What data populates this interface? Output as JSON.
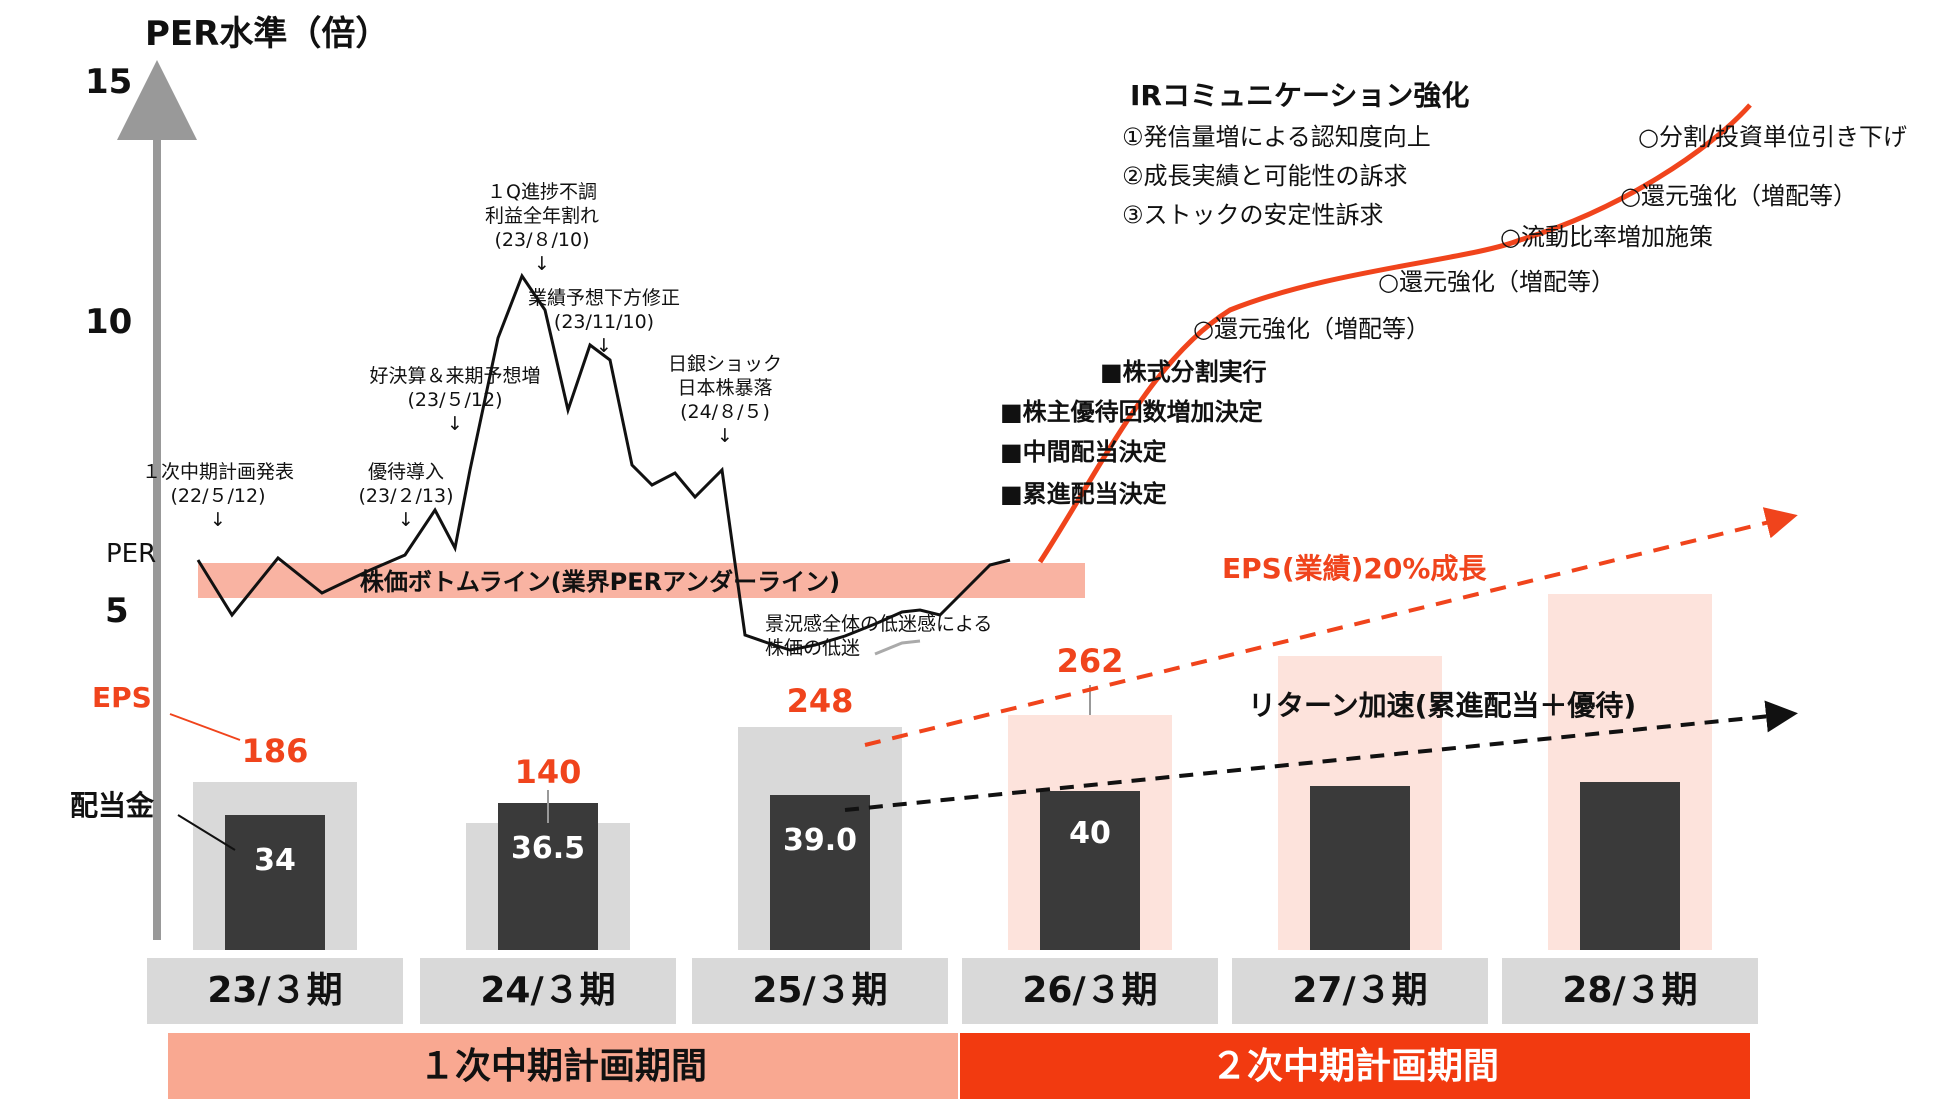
{
  "chart_data": {
    "type": "bar",
    "title": "PER水準（倍）",
    "y_ticks": [
      "15",
      "10",
      "5"
    ],
    "y_tick_values": [
      15,
      10,
      5
    ],
    "per_label": "PER",
    "eps_label": "EPS",
    "dividend_label": "配当金",
    "categories": [
      "23/３期",
      "24/３期",
      "25/３期",
      "26/３期",
      "27/３期",
      "28/３期"
    ],
    "series": [
      {
        "name": "EPS",
        "values": [
          186,
          140,
          248,
          262,
          null,
          null
        ],
        "labels": [
          "186",
          "140",
          "248",
          "262",
          "",
          ""
        ]
      },
      {
        "name": "配当金",
        "values": [
          34,
          36.5,
          39.0,
          40,
          null,
          null
        ],
        "labels": [
          "34",
          "36.5",
          "39.0",
          "40",
          "",
          ""
        ]
      }
    ],
    "periods": [
      {
        "label": "１次中期計画期間",
        "color": "#f9a891"
      },
      {
        "label": "２次中期計画期間",
        "color": "#f23a10"
      }
    ],
    "bottom_line_label": "株価ボトムライン(業界PERアンダーライン)",
    "eps_growth_label": "EPS(業績)20%成長",
    "return_label": "リターン加速(累進配当＋優待)",
    "events": [
      {
        "lines": [
          "１次中期計画発表",
          "(22/５/12)",
          "↓"
        ]
      },
      {
        "lines": [
          "優待導入",
          "(23/２/13)",
          "↓"
        ]
      },
      {
        "lines": [
          "好決算＆来期予想増",
          "(23/５/12)",
          "↓"
        ]
      },
      {
        "lines": [
          "１Q進捗不調",
          "利益全年割れ",
          "(23/８/10)",
          "↓"
        ]
      },
      {
        "lines": [
          "業績予想下方修正",
          "(23/11/10)",
          "↓"
        ]
      },
      {
        "lines": [
          "日銀ショック",
          "日本株暴落",
          "(24/８/５)",
          "↓"
        ]
      },
      {
        "lines": [
          "景況感全体の低迷感による",
          "株価の低迷"
        ]
      }
    ],
    "ir": {
      "title": "IRコミュニケーション強化",
      "items": [
        "①発信量増による認知度向上",
        "②成長実績と可能性の訴求",
        "③ストックの安定性訴求"
      ]
    },
    "measures": [
      "■株式分割実行",
      "■株主優待回数増加決定",
      "■中間配当決定",
      "■累進配当決定"
    ],
    "future_measures": [
      "○還元強化（増配等）",
      "○還元強化（増配等）",
      "○流動比率増加施策",
      "○還元強化（増配等）",
      "○分割/投資単位引き下げ"
    ],
    "colors": {
      "accent": "#f0441c",
      "dark_bar": "#3a3a3a",
      "gray_bar": "#d9d9d9",
      "pink_bar": "#fde3dc",
      "band": "#f9b3a2"
    }
  }
}
